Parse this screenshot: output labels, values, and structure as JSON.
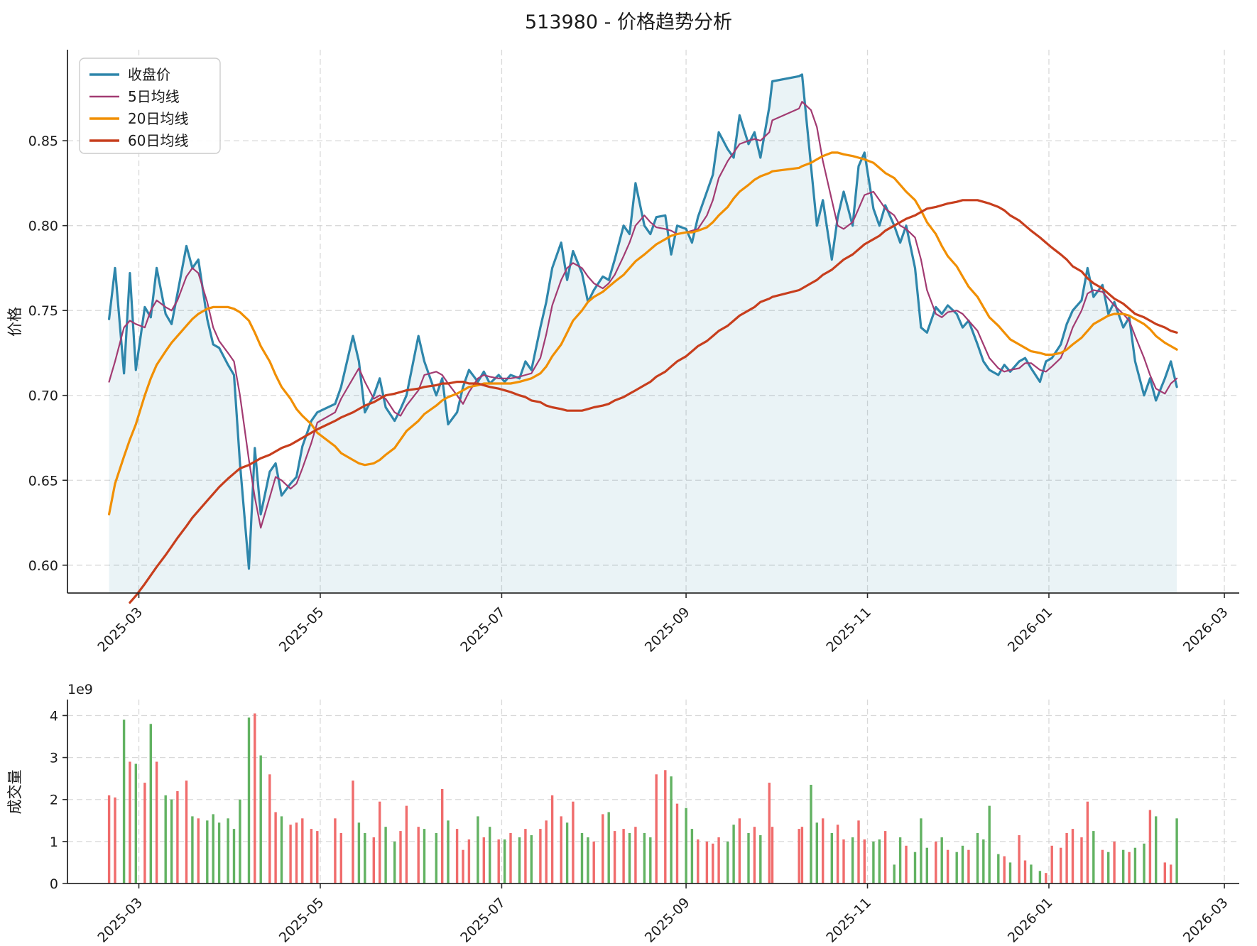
{
  "title": "513980 - 价格趋势分析",
  "top_chart": {
    "ylabel": "价格",
    "ytick_labels": [
      "0.60",
      "0.65",
      "0.70",
      "0.75",
      "0.80",
      "0.85"
    ],
    "ytick_values": [
      0.6,
      0.65,
      0.7,
      0.75,
      0.8,
      0.85
    ],
    "xtick_labels": [
      "2025-03",
      "2025-05",
      "2025-07",
      "2025-09",
      "2025-11",
      "2026-01",
      "2026-03"
    ],
    "legend": [
      {
        "label": "收盘价",
        "color": "#2E86AB"
      },
      {
        "label": "5日均线",
        "color": "#A23B72"
      },
      {
        "label": "20日均线",
        "color": "#F18F01"
      },
      {
        "label": "60日均线",
        "color": "#C73E1D"
      }
    ]
  },
  "bottom_chart": {
    "ylabel": "成交量",
    "offset_label": "1e9",
    "ytick_labels": [
      "0",
      "1",
      "2",
      "3",
      "4"
    ],
    "ytick_values": [
      0,
      1,
      2,
      3,
      4
    ],
    "xtick_labels": [
      "2025-03",
      "2025-05",
      "2025-07",
      "2025-09",
      "2025-11",
      "2026-01",
      "2026-03"
    ]
  },
  "colors": {
    "close": "#2E86AB",
    "ma5": "#A23B72",
    "ma20": "#F18F01",
    "ma60": "#C73E1D",
    "close_fill": "rgba(46,134,171,0.10)",
    "vol_up": "#f06c6c",
    "vol_down": "#62b262",
    "grid": "#cdcdcd",
    "spine": "#2b2b2b"
  },
  "chart_data": {
    "type": "multi-panel",
    "x_epoch": "calendar days since 2025-02-19",
    "x_days": [
      0,
      2,
      5,
      7,
      9,
      12,
      14,
      16,
      19,
      21,
      23,
      26,
      28,
      30,
      33,
      35,
      37,
      40,
      42,
      44,
      47,
      49,
      51,
      54,
      56,
      58,
      61,
      63,
      65,
      68,
      70,
      76,
      78,
      82,
      84,
      86,
      89,
      91,
      93,
      96,
      98,
      100,
      104,
      106,
      110,
      112,
      114,
      117,
      119,
      121,
      124,
      126,
      128,
      131,
      133,
      135,
      138,
      140,
      142,
      145,
      147,
      149,
      152,
      154,
      156,
      159,
      161,
      163,
      166,
      168,
      170,
      173,
      175,
      177,
      180,
      182,
      184,
      187,
      189,
      191,
      194,
      196,
      198,
      201,
      203,
      205,
      208,
      210,
      212,
      215,
      217,
      219,
      222,
      223,
      232,
      233,
      236,
      238,
      240,
      243,
      245,
      247,
      250,
      252,
      254,
      257,
      259,
      261,
      264,
      266,
      268,
      271,
      273,
      275,
      278,
      280,
      282,
      285,
      287,
      289,
      292,
      294,
      296,
      299,
      301,
      303,
      306,
      308,
      310,
      313,
      315,
      317,
      320,
      322,
      324,
      327,
      329,
      331,
      334,
      336,
      338,
      341,
      343,
      345,
      348,
      350,
      352,
      355,
      357,
      359
    ],
    "xtick_days": [
      10,
      71,
      132,
      194,
      255,
      316,
      375
    ],
    "panels": [
      {
        "type": "line",
        "name": "price",
        "ylabel": "价格",
        "ylim": [
          0.5836,
          0.9036
        ],
        "xlim_days": [
          -14,
          380
        ],
        "grid": true,
        "legend_position": "upper-left",
        "series": [
          {
            "name": "收盘价",
            "color": "#2E86AB",
            "fill_to_bottom": true,
            "values": [
              0.745,
              0.775,
              0.713,
              0.772,
              0.715,
              0.752,
              0.746,
              0.775,
              0.748,
              0.742,
              0.76,
              0.788,
              0.775,
              0.78,
              0.745,
              0.73,
              0.728,
              0.718,
              0.712,
              0.66,
              0.598,
              0.669,
              0.63,
              0.655,
              0.66,
              0.641,
              0.648,
              0.652,
              0.67,
              0.685,
              0.69,
              0.695,
              0.705,
              0.735,
              0.72,
              0.69,
              0.7,
              0.71,
              0.693,
              0.685,
              0.692,
              0.7,
              0.735,
              0.72,
              0.7,
              0.71,
              0.683,
              0.69,
              0.705,
              0.715,
              0.708,
              0.714,
              0.707,
              0.712,
              0.708,
              0.712,
              0.71,
              0.72,
              0.715,
              0.74,
              0.755,
              0.775,
              0.79,
              0.768,
              0.785,
              0.772,
              0.755,
              0.762,
              0.77,
              0.768,
              0.78,
              0.8,
              0.795,
              0.825,
              0.8,
              0.795,
              0.805,
              0.806,
              0.783,
              0.8,
              0.798,
              0.79,
              0.805,
              0.82,
              0.83,
              0.855,
              0.845,
              0.84,
              0.865,
              0.848,
              0.855,
              0.84,
              0.87,
              0.885,
              0.888,
              0.889,
              0.835,
              0.8,
              0.815,
              0.78,
              0.805,
              0.82,
              0.8,
              0.835,
              0.843,
              0.81,
              0.8,
              0.812,
              0.8,
              0.79,
              0.8,
              0.775,
              0.74,
              0.737,
              0.752,
              0.748,
              0.753,
              0.748,
              0.74,
              0.744,
              0.73,
              0.72,
              0.715,
              0.712,
              0.718,
              0.714,
              0.72,
              0.722,
              0.716,
              0.708,
              0.72,
              0.722,
              0.73,
              0.742,
              0.75,
              0.756,
              0.775,
              0.758,
              0.765,
              0.748,
              0.755,
              0.74,
              0.746,
              0.72,
              0.7,
              0.71,
              0.697,
              0.71,
              0.72,
              0.705
            ]
          },
          {
            "name": "5日均线",
            "color": "#A23B72",
            "values": [
              0.708,
              0.72,
              0.74,
              0.744,
              0.742,
              0.74,
              0.75,
              0.756,
              0.752,
              0.75,
              0.756,
              0.77,
              0.775,
              0.772,
              0.755,
              0.74,
              0.732,
              0.725,
              0.72,
              0.7,
              0.662,
              0.64,
              0.622,
              0.64,
              0.652,
              0.65,
              0.645,
              0.648,
              0.657,
              0.672,
              0.684,
              0.69,
              0.698,
              0.71,
              0.716,
              0.708,
              0.698,
              0.7,
              0.698,
              0.69,
              0.688,
              0.694,
              0.703,
              0.712,
              0.714,
              0.712,
              0.707,
              0.7,
              0.695,
              0.702,
              0.71,
              0.712,
              0.711,
              0.71,
              0.71,
              0.71,
              0.711,
              0.712,
              0.713,
              0.722,
              0.736,
              0.753,
              0.768,
              0.775,
              0.778,
              0.775,
              0.77,
              0.766,
              0.763,
              0.766,
              0.771,
              0.782,
              0.79,
              0.8,
              0.806,
              0.802,
              0.799,
              0.798,
              0.797,
              0.795,
              0.796,
              0.797,
              0.798,
              0.806,
              0.815,
              0.828,
              0.838,
              0.843,
              0.848,
              0.85,
              0.851,
              0.85,
              0.855,
              0.862,
              0.869,
              0.873,
              0.868,
              0.858,
              0.838,
              0.815,
              0.8,
              0.798,
              0.802,
              0.81,
              0.818,
              0.82,
              0.815,
              0.81,
              0.806,
              0.8,
              0.798,
              0.793,
              0.78,
              0.762,
              0.748,
              0.746,
              0.749,
              0.75,
              0.748,
              0.744,
              0.738,
              0.73,
              0.722,
              0.716,
              0.714,
              0.715,
              0.716,
              0.719,
              0.719,
              0.715,
              0.714,
              0.717,
              0.722,
              0.73,
              0.74,
              0.75,
              0.76,
              0.762,
              0.761,
              0.757,
              0.753,
              0.748,
              0.744,
              0.735,
              0.722,
              0.712,
              0.704,
              0.701,
              0.707,
              0.71
            ]
          },
          {
            "name": "20日均线",
            "color": "#F18F01",
            "values": [
              0.63,
              0.648,
              0.664,
              0.674,
              0.683,
              0.7,
              0.71,
              0.718,
              0.726,
              0.731,
              0.735,
              0.741,
              0.745,
              0.748,
              0.751,
              0.752,
              0.752,
              0.752,
              0.751,
              0.749,
              0.744,
              0.737,
              0.729,
              0.72,
              0.712,
              0.705,
              0.698,
              0.692,
              0.688,
              0.683,
              0.678,
              0.67,
              0.666,
              0.662,
              0.66,
              0.659,
              0.66,
              0.662,
              0.665,
              0.669,
              0.674,
              0.679,
              0.685,
              0.689,
              0.694,
              0.697,
              0.699,
              0.701,
              0.703,
              0.705,
              0.706,
              0.707,
              0.707,
              0.707,
              0.707,
              0.707,
              0.708,
              0.709,
              0.71,
              0.713,
              0.717,
              0.723,
              0.73,
              0.737,
              0.744,
              0.75,
              0.755,
              0.758,
              0.761,
              0.764,
              0.767,
              0.771,
              0.775,
              0.779,
              0.783,
              0.786,
              0.789,
              0.792,
              0.794,
              0.795,
              0.796,
              0.796,
              0.797,
              0.799,
              0.802,
              0.806,
              0.811,
              0.816,
              0.82,
              0.824,
              0.827,
              0.829,
              0.831,
              0.832,
              0.834,
              0.835,
              0.837,
              0.839,
              0.841,
              0.843,
              0.843,
              0.842,
              0.841,
              0.84,
              0.839,
              0.837,
              0.834,
              0.831,
              0.828,
              0.824,
              0.82,
              0.815,
              0.809,
              0.802,
              0.795,
              0.788,
              0.782,
              0.776,
              0.77,
              0.764,
              0.758,
              0.752,
              0.746,
              0.741,
              0.737,
              0.733,
              0.73,
              0.728,
              0.726,
              0.725,
              0.724,
              0.724,
              0.725,
              0.727,
              0.73,
              0.734,
              0.738,
              0.742,
              0.745,
              0.747,
              0.748,
              0.748,
              0.747,
              0.745,
              0.742,
              0.739,
              0.735,
              0.731,
              0.729,
              0.727
            ]
          },
          {
            "name": "60日均线",
            "color": "#C73E1D",
            "values": [
              null,
              null,
              null,
              0.578,
              0.582,
              0.589,
              0.594,
              0.599,
              0.606,
              0.611,
              0.616,
              0.623,
              0.628,
              0.632,
              0.638,
              0.642,
              0.646,
              0.651,
              0.654,
              0.657,
              0.659,
              0.661,
              0.663,
              0.665,
              0.667,
              0.669,
              0.671,
              0.673,
              0.675,
              0.678,
              0.68,
              0.685,
              0.687,
              0.69,
              0.692,
              0.694,
              0.696,
              0.698,
              0.7,
              0.701,
              0.702,
              0.703,
              0.704,
              0.705,
              0.706,
              0.707,
              0.707,
              0.708,
              0.708,
              0.707,
              0.707,
              0.706,
              0.705,
              0.704,
              0.703,
              0.702,
              0.7,
              0.699,
              0.697,
              0.696,
              0.694,
              0.693,
              0.692,
              0.691,
              0.691,
              0.691,
              0.692,
              0.693,
              0.694,
              0.695,
              0.697,
              0.699,
              0.701,
              0.703,
              0.706,
              0.708,
              0.711,
              0.714,
              0.717,
              0.72,
              0.723,
              0.726,
              0.729,
              0.732,
              0.735,
              0.738,
              0.741,
              0.744,
              0.747,
              0.75,
              0.752,
              0.755,
              0.757,
              0.758,
              0.762,
              0.763,
              0.766,
              0.768,
              0.771,
              0.774,
              0.777,
              0.78,
              0.783,
              0.786,
              0.789,
              0.792,
              0.794,
              0.797,
              0.8,
              0.802,
              0.804,
              0.806,
              0.808,
              0.81,
              0.811,
              0.812,
              0.813,
              0.814,
              0.815,
              0.815,
              0.815,
              0.814,
              0.813,
              0.811,
              0.809,
              0.806,
              0.803,
              0.8,
              0.797,
              0.793,
              0.79,
              0.787,
              0.783,
              0.78,
              0.776,
              0.773,
              0.769,
              0.766,
              0.763,
              0.76,
              0.757,
              0.754,
              0.751,
              0.748,
              0.746,
              0.744,
              0.742,
              0.74,
              0.738,
              0.737
            ]
          }
        ]
      },
      {
        "type": "bar",
        "name": "volume",
        "ylabel": "成交量",
        "unit_scale": "1e9",
        "ylim": [
          0,
          4.38
        ],
        "grid": true,
        "color_rule": "red if close up vs previous day, green if down",
        "values_1e9": [
          2.1,
          2.05,
          3.9,
          2.9,
          2.85,
          2.4,
          3.8,
          2.9,
          2.1,
          2.0,
          2.2,
          2.45,
          1.6,
          1.55,
          1.5,
          1.65,
          1.45,
          1.55,
          1.3,
          2.0,
          3.95,
          4.05,
          3.05,
          2.6,
          1.7,
          1.6,
          1.4,
          1.45,
          1.55,
          1.3,
          1.25,
          1.55,
          1.2,
          2.45,
          1.45,
          1.2,
          1.1,
          1.95,
          1.35,
          1.0,
          1.25,
          1.85,
          1.35,
          1.3,
          1.2,
          2.25,
          1.5,
          1.3,
          0.8,
          1.05,
          1.6,
          1.1,
          1.35,
          1.05,
          1.05,
          1.2,
          1.1,
          1.3,
          1.15,
          1.3,
          1.5,
          2.1,
          1.6,
          1.45,
          1.95,
          1.2,
          1.1,
          1.0,
          1.65,
          1.7,
          1.25,
          1.3,
          1.2,
          1.35,
          1.2,
          1.1,
          2.6,
          2.7,
          2.55,
          1.9,
          1.8,
          1.3,
          1.05,
          1.0,
          0.95,
          1.1,
          1.0,
          1.4,
          1.55,
          1.2,
          1.35,
          1.15,
          2.4,
          1.35,
          1.3,
          1.35,
          2.35,
          1.45,
          1.55,
          1.2,
          1.4,
          1.05,
          1.1,
          1.5,
          1.05,
          1.0,
          1.05,
          1.25,
          0.45,
          1.1,
          0.9,
          0.75,
          1.55,
          0.85,
          1.0,
          1.1,
          0.8,
          0.75,
          0.9,
          0.8,
          1.2,
          1.05,
          1.85,
          0.7,
          0.65,
          0.5,
          1.15,
          0.55,
          0.45,
          0.3,
          0.25,
          0.9,
          0.85,
          1.2,
          1.3,
          1.1,
          1.95,
          1.25,
          0.8,
          0.75,
          1.0,
          0.8,
          0.75,
          0.85,
          0.95,
          1.75,
          1.6,
          0.5,
          0.45,
          1.55
        ]
      }
    ]
  }
}
